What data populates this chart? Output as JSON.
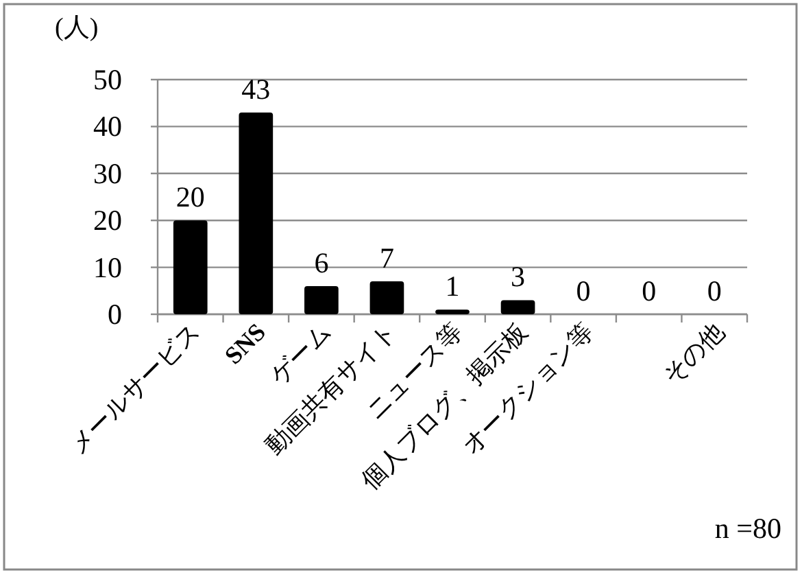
{
  "chart_data": {
    "type": "bar",
    "ylabel": "(人)",
    "categories": [
      "メールサービス",
      "SNS",
      "ゲーム",
      "動画共有サイト",
      "ニュース等",
      "個人ブログ、掲示板",
      "オークション等",
      null,
      "その他"
    ],
    "values": [
      20,
      43,
      6,
      7,
      1,
      3,
      0,
      0,
      0
    ],
    "color": "#000000",
    "ylim": [
      0,
      50
    ],
    "yticks": [
      0,
      10,
      20,
      30,
      40,
      50
    ],
    "grid": "y",
    "data_labels": true,
    "annotations": [
      "n =80"
    ]
  }
}
